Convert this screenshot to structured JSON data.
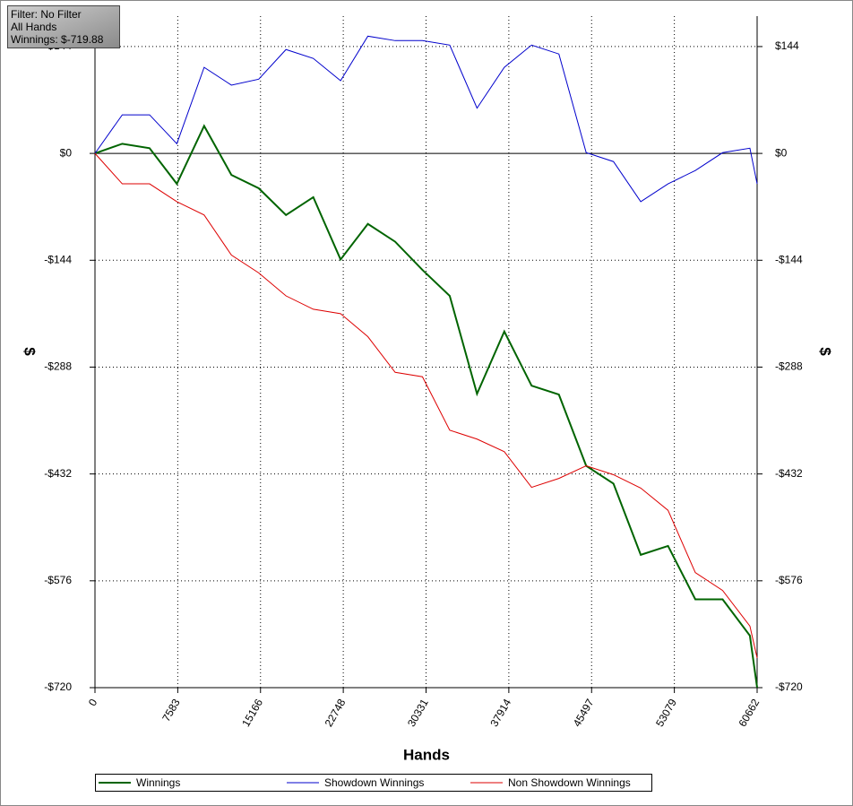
{
  "chart_data": {
    "type": "line",
    "info": [
      "Filter: No Filter",
      "All Hands",
      "Winnings: $-719.88"
    ],
    "xlabel": "Hands",
    "ylabel": "$",
    "y2label": "$",
    "x": [
      0,
      2500,
      5000,
      7500,
      10000,
      12500,
      15000,
      17500,
      20000,
      22500,
      25000,
      27500,
      30000,
      32500,
      35000,
      37500,
      40000,
      42500,
      45000,
      47500,
      50000,
      52500,
      55000,
      57500,
      60000,
      60662
    ],
    "series": [
      {
        "name": "Winnings",
        "color": "#006400",
        "width": 2,
        "values": [
          0,
          13,
          7,
          -41,
          37,
          -29,
          -47,
          -83,
          -59,
          -143,
          -95,
          -119,
          -157,
          -192,
          -324,
          -240,
          -313,
          -325,
          -421,
          -445,
          -541,
          -529,
          -601,
          -601,
          -650,
          -719.88
        ]
      },
      {
        "name": "Showdown Winnings",
        "color": "#0000cc",
        "width": 1,
        "values": [
          0,
          52,
          52,
          13,
          116,
          92,
          100,
          140,
          128,
          98,
          158,
          152,
          152,
          146,
          61,
          116,
          146,
          134,
          1,
          -11,
          -65,
          -41,
          -23,
          1,
          7,
          -41
        ]
      },
      {
        "name": "Non Showdown Winnings",
        "color": "#dd0000",
        "width": 1,
        "values": [
          0,
          -41,
          -41,
          -65,
          -83,
          -137,
          -161,
          -192,
          -210,
          -216,
          -247,
          -295,
          -301,
          -373,
          -385,
          -402,
          -450,
          -438,
          -421,
          -433,
          -451,
          -481,
          -565,
          -589,
          -637,
          -680
        ]
      }
    ],
    "xlim": [
      0,
      60662
    ],
    "xticks": [
      0,
      7583,
      15166,
      22748,
      30331,
      37914,
      45497,
      53079,
      60662
    ],
    "ylim": [
      -720,
      185
    ],
    "yticks": [
      {
        "value": 144,
        "label": "$144"
      },
      {
        "value": 0,
        "label": "$0"
      },
      {
        "value": -144,
        "label": "-$144"
      },
      {
        "value": -288,
        "label": "-$288"
      },
      {
        "value": -432,
        "label": "-$432"
      },
      {
        "value": -576,
        "label": "-$576"
      },
      {
        "value": -720,
        "label": "-$720"
      }
    ],
    "grid": true
  }
}
